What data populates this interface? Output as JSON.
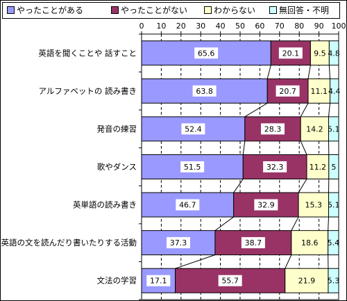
{
  "legend": {
    "items": [
      {
        "label": "やったことがある",
        "color": "#9999ff"
      },
      {
        "label": "やったことがない",
        "color": "#993366"
      },
      {
        "label": "わからない",
        "color": "#ffffcc"
      },
      {
        "label": "無回答・不明",
        "color": "#ccffff"
      }
    ]
  },
  "chart_data": {
    "type": "bar",
    "orientation": "horizontal",
    "stacked": true,
    "xlim": [
      0,
      100
    ],
    "xticks": [
      0,
      10,
      20,
      30,
      40,
      50,
      60,
      70,
      80,
      90,
      100
    ],
    "categories": [
      "英語を聞くことや 話すこと",
      "アルファベットの 読み書き",
      "発音の練習",
      "歌やダンス",
      "英単語の読み書き",
      "英語の文を読んだり書いたりする活動",
      "文法の学習"
    ],
    "series": [
      {
        "name": "やったことがある",
        "color": "#9999ff",
        "values": [
          65.6,
          63.8,
          52.4,
          51.5,
          46.7,
          37.3,
          17.1
        ]
      },
      {
        "name": "やったことがない",
        "color": "#993366",
        "values": [
          20.1,
          20.7,
          28.3,
          32.3,
          32.9,
          38.7,
          55.7
        ]
      },
      {
        "name": "わからない",
        "color": "#ffffcc",
        "values": [
          9.5,
          11.1,
          14.2,
          11.2,
          15.3,
          18.6,
          21.9
        ]
      },
      {
        "name": "無回答・不明",
        "color": "#ccffff",
        "values": [
          4.8,
          4.4,
          5.1,
          5.0,
          5.1,
          5.4,
          5.3
        ]
      }
    ],
    "grid": "vertical dashed",
    "series_lines": true,
    "legend_position": "top"
  }
}
